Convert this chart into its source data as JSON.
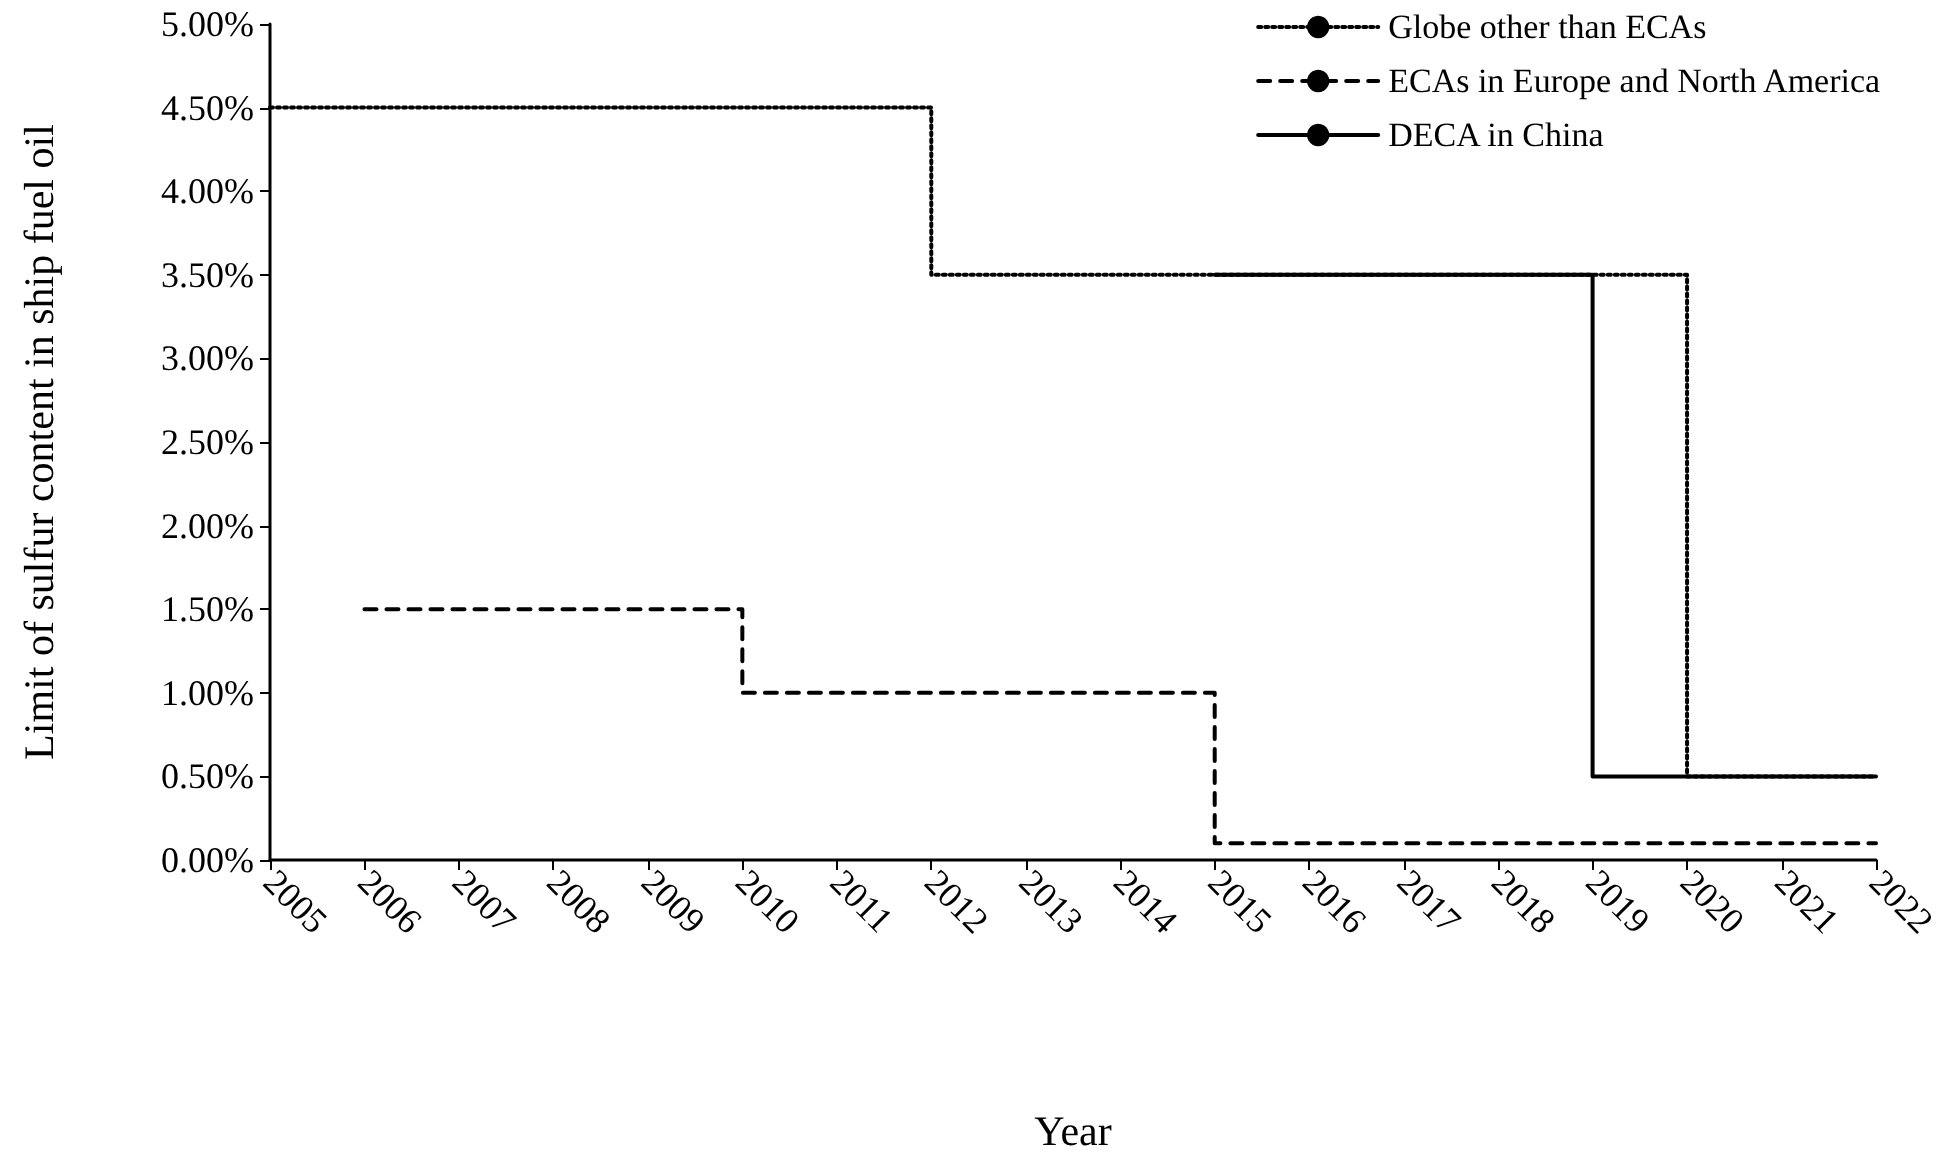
{
  "chart_data": {
    "type": "step",
    "xlabel": "Year",
    "ylabel": "Limit of sulfur content in ship fuel oil",
    "xlim": [
      2005,
      2022
    ],
    "xticks": [
      2005,
      2006,
      2007,
      2008,
      2009,
      2010,
      2011,
      2012,
      2013,
      2014,
      2015,
      2016,
      2017,
      2018,
      2019,
      2020,
      2021,
      2022
    ],
    "ylim": [
      0,
      5
    ],
    "yticks": [
      {
        "value": 0,
        "label": "0.00%"
      },
      {
        "value": 0.5,
        "label": "0.50%"
      },
      {
        "value": 1,
        "label": "1.00%"
      },
      {
        "value": 1.5,
        "label": "1.50%"
      },
      {
        "value": 2,
        "label": "2.00%"
      },
      {
        "value": 2.5,
        "label": "2.50%"
      },
      {
        "value": 3,
        "label": "3.00%"
      },
      {
        "value": 3.5,
        "label": "3.50%"
      },
      {
        "value": 4,
        "label": "4.00%"
      },
      {
        "value": 4.5,
        "label": "4.50%"
      },
      {
        "value": 5,
        "label": "5.00%"
      }
    ],
    "series": [
      {
        "name": "Globe other than ECAs",
        "color": "#000000",
        "line_style": "dotted",
        "x": [
          2005,
          2012,
          2020,
          2022
        ],
        "values": [
          4.5,
          3.5,
          0.5,
          0.5
        ]
      },
      {
        "name": "ECAs in Europe and North America",
        "color": "#000000",
        "line_style": "dashed",
        "x": [
          2006,
          2010,
          2015,
          2022
        ],
        "values": [
          1.5,
          1.0,
          0.1,
          0.1
        ]
      },
      {
        "name": "DECA in China",
        "color": "#000000",
        "line_style": "solid",
        "x": [
          2015,
          2019,
          2022
        ],
        "values": [
          3.5,
          0.5,
          0.5
        ]
      }
    ],
    "grid": false,
    "legend": "top right",
    "marker": "none"
  }
}
